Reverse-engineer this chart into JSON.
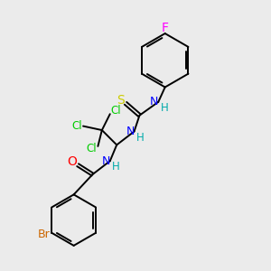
{
  "background_color": "#ebebeb",
  "bond_color": "#000000",
  "atom_colors": {
    "F": "#ff00ff",
    "N": "#0000ff",
    "H": "#00aaaa",
    "S": "#cccc00",
    "Cl": "#00cc00",
    "O": "#ff0000",
    "Br": "#cc6600",
    "C": "#000000"
  },
  "figsize": [
    3.0,
    3.0
  ],
  "dpi": 100
}
